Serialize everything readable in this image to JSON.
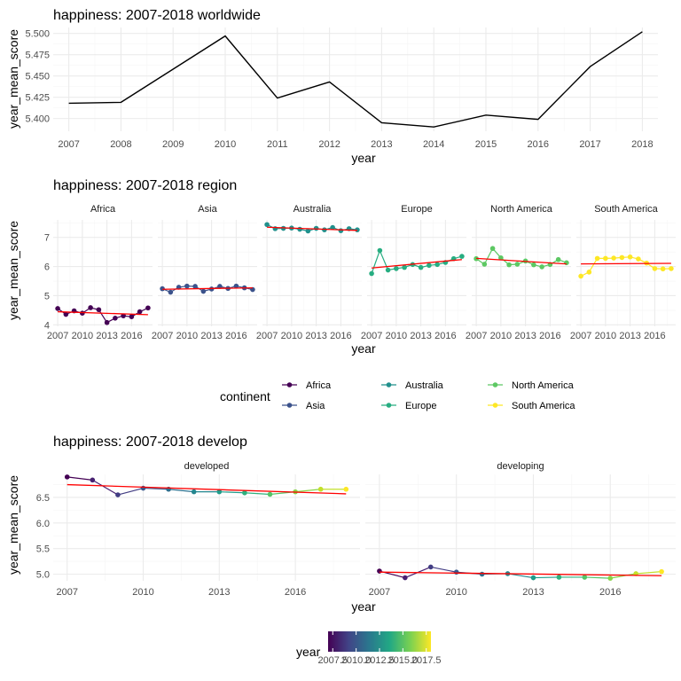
{
  "colors": {
    "Africa": "#440154",
    "Asia": "#3b528b",
    "Australia": "#21908c",
    "Europe": "#27ad81",
    "North America": "#5dc863",
    "South America": "#fde725",
    "trend": "#ff0000",
    "worldwide_line": "#000000",
    "grid_major": "#ebebeb",
    "grid_minor": "#f5f5f5"
  },
  "chart_data": [
    {
      "type": "line",
      "title": "happiness: 2007-2018 worldwide",
      "xlabel": "year",
      "ylabel": "year_mean_score",
      "x": [
        2007,
        2008,
        2009,
        2010,
        2011,
        2012,
        2013,
        2014,
        2015,
        2016,
        2017,
        2018
      ],
      "y": [
        5.418,
        5.419,
        5.458,
        5.497,
        5.424,
        5.443,
        5.395,
        5.39,
        5.404,
        5.399,
        5.461,
        5.502
      ],
      "xlim": [
        2006.7,
        2018.3
      ],
      "ylim": [
        5.385,
        5.507
      ],
      "x_ticks": [
        "2007",
        "2008",
        "2009",
        "2010",
        "2011",
        "2012",
        "2013",
        "2014",
        "2015",
        "2016",
        "2017",
        "2018"
      ],
      "y_ticks": [
        "5.400",
        "5.425",
        "5.450",
        "5.475",
        "5.500"
      ]
    },
    {
      "type": "line",
      "title": "happiness: 2007-2018 region",
      "xlabel": "year",
      "ylabel": "year_mean_score",
      "x": [
        2007,
        2008,
        2009,
        2010,
        2011,
        2012,
        2013,
        2014,
        2015,
        2016,
        2017,
        2018
      ],
      "ylim": [
        3.95,
        7.6
      ],
      "y_ticks": [
        "4",
        "5",
        "6",
        "7"
      ],
      "x_ticks": [
        "2007",
        "2010",
        "2013",
        "2016"
      ],
      "legend_title": "continent",
      "legend_position": "bottom",
      "legend_labels": [
        "Africa",
        "Asia",
        "Australia",
        "Europe",
        "North America",
        "South America"
      ],
      "panels": [
        {
          "name": "Africa",
          "values": [
            4.56,
            4.36,
            4.48,
            4.4,
            4.59,
            4.52,
            4.08,
            4.23,
            4.31,
            4.28,
            4.45,
            4.58
          ],
          "trend": [
            4.45,
            4.35
          ]
        },
        {
          "name": "Asia",
          "values": [
            5.24,
            5.12,
            5.29,
            5.33,
            5.32,
            5.15,
            5.23,
            5.32,
            5.25,
            5.33,
            5.27,
            5.21
          ],
          "trend": [
            5.22,
            5.27
          ]
        },
        {
          "name": "Australia",
          "values": [
            7.44,
            7.3,
            7.31,
            7.32,
            7.28,
            7.22,
            7.31,
            7.26,
            7.34,
            7.23,
            7.3,
            7.26
          ],
          "trend": [
            7.35,
            7.24
          ]
        },
        {
          "name": "Europe",
          "values": [
            5.76,
            6.55,
            5.88,
            5.93,
            5.97,
            6.07,
            5.97,
            6.04,
            6.07,
            6.14,
            6.27,
            6.35
          ],
          "trend": [
            5.95,
            6.24
          ]
        },
        {
          "name": "North America",
          "values": [
            6.27,
            6.08,
            6.62,
            6.3,
            6.06,
            6.08,
            6.19,
            6.06,
            5.99,
            6.07,
            6.24,
            6.13
          ],
          "trend": [
            6.28,
            6.09
          ]
        },
        {
          "name": "South America",
          "values": [
            5.67,
            5.81,
            6.28,
            6.28,
            6.29,
            6.31,
            6.33,
            6.26,
            6.12,
            5.93,
            5.92,
            5.93
          ],
          "trend": [
            6.09,
            6.11
          ]
        }
      ]
    },
    {
      "type": "line",
      "title": "happiness: 2007-2018 develop",
      "xlabel": "year",
      "ylabel": "year_mean_score",
      "x": [
        2007,
        2008,
        2009,
        2010,
        2011,
        2012,
        2013,
        2014,
        2015,
        2016,
        2017,
        2018
      ],
      "ylim": [
        4.87,
        6.95
      ],
      "y_ticks": [
        "5.0",
        "5.5",
        "6.0",
        "6.5"
      ],
      "x_ticks": [
        "2007",
        "2010",
        "2013",
        "2016"
      ],
      "legend_title": "year",
      "legend_position": "bottom",
      "colorbar_ticks": [
        "2007.5",
        "2010.0",
        "2012.5",
        "2015.0",
        "2017.5"
      ],
      "colorbar_labels": [
        "2007.5",
        "2010.0",
        "2012.5",
        "2015.0",
        "2017.5"
      ],
      "panels": [
        {
          "name": "developed",
          "values": [
            6.9,
            6.84,
            6.55,
            6.68,
            6.66,
            6.61,
            6.61,
            6.59,
            6.56,
            6.61,
            6.66,
            6.66
          ],
          "trend": [
            6.75,
            6.57
          ]
        },
        {
          "name": "developing",
          "values": [
            5.06,
            4.93,
            5.14,
            5.04,
            5.0,
            5.01,
            4.93,
            4.94,
            4.94,
            4.92,
            5.01,
            5.05
          ],
          "trend": [
            5.04,
            4.97
          ]
        }
      ]
    }
  ]
}
